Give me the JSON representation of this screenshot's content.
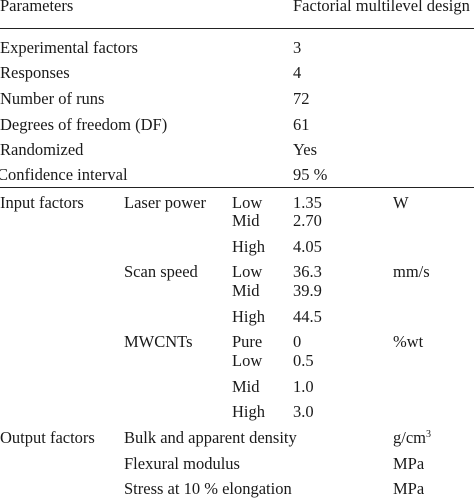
{
  "table": {
    "header": {
      "parameters": "Parameters",
      "design": "Factorial multilevel design"
    },
    "general": [
      {
        "label": "Experimental factors",
        "value": "3"
      },
      {
        "label": "Responses",
        "value": "4"
      },
      {
        "label": "Number of runs",
        "value": "72"
      },
      {
        "label": "Degrees of freedom (DF)",
        "value": "61"
      },
      {
        "label": "Randomized",
        "value": "Yes"
      },
      {
        "label": "Confidence interval",
        "value": "95 %"
      }
    ],
    "input_factors": {
      "label": "Input factors",
      "laser_power": {
        "name": "Laser power",
        "unit": "W",
        "levels": [
          {
            "level": "Low",
            "value": "1.35"
          },
          {
            "level": "Mid",
            "value": "2.70"
          },
          {
            "level": "High",
            "value": "4.05"
          }
        ]
      },
      "scan_speed": {
        "name": "Scan speed",
        "unit": "mm/s",
        "levels": [
          {
            "level": "Low",
            "value": "36.3"
          },
          {
            "level": "Mid",
            "value": "39.9"
          },
          {
            "level": "High",
            "value": "44.5"
          }
        ]
      },
      "mwcnts": {
        "name": "MWCNTs",
        "unit": "%wt",
        "levels": [
          {
            "level": "Pure",
            "value": "0"
          },
          {
            "level": "Low",
            "value": "0.5"
          },
          {
            "level": "Mid",
            "value": "1.0"
          },
          {
            "level": "High",
            "value": "3.0"
          }
        ]
      }
    },
    "output_factors": {
      "label": "Output factors",
      "rows": [
        {
          "name": "Bulk and apparent density",
          "unit": "g/cm",
          "unit_sup": "3"
        },
        {
          "name": "Flexural modulus",
          "unit": "MPa"
        },
        {
          "name": "Stress at 10 % elongation",
          "unit": "MPa"
        }
      ]
    }
  }
}
